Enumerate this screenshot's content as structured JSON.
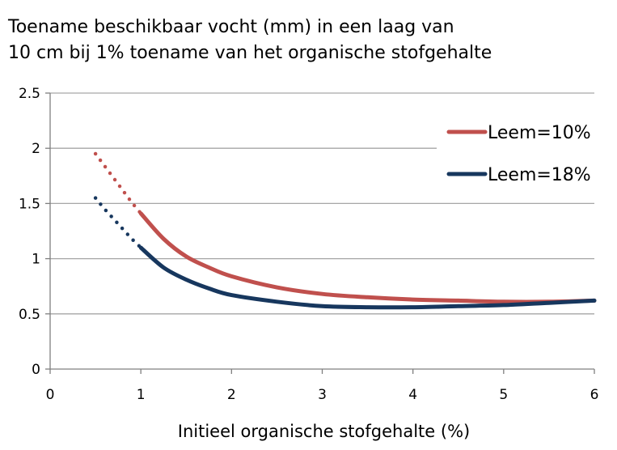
{
  "chart_data": {
    "type": "line",
    "title_lines": [
      "Toename beschikbaar vocht (mm) in een laag van",
      "10 cm bij 1% toename van het organische stofgehalte"
    ],
    "xlabel": "Initieel organische stofgehalte (%)",
    "ylabel": "",
    "xlim": [
      0,
      6
    ],
    "ylim": [
      0,
      2.5
    ],
    "x_ticks": [
      "0",
      "1",
      "2",
      "3",
      "4",
      "5",
      "6"
    ],
    "y_ticks": [
      "0",
      "0.5",
      "1",
      "1.5",
      "2",
      "2.5"
    ],
    "grid": "horizontal",
    "legend_position": "top-right",
    "series": [
      {
        "name": "Leem=10%",
        "color": "#c0504d",
        "dotted_segment": {
          "x": [
            0.5,
            0.6,
            0.7,
            0.8,
            0.9,
            1.0
          ],
          "y": [
            1.95,
            1.84,
            1.73,
            1.62,
            1.51,
            1.41
          ]
        },
        "solid_segment": {
          "x": [
            1.0,
            1.25,
            1.5,
            1.75,
            2.0,
            2.5,
            3.0,
            3.5,
            4.0,
            4.5,
            5.0,
            5.5,
            6.0
          ],
          "y": [
            1.41,
            1.18,
            1.02,
            0.92,
            0.84,
            0.74,
            0.68,
            0.65,
            0.63,
            0.62,
            0.61,
            0.61,
            0.62
          ]
        }
      },
      {
        "name": "Leem=18%",
        "color": "#17375e",
        "dotted_segment": {
          "x": [
            0.5,
            0.6,
            0.7,
            0.8,
            0.9,
            1.0
          ],
          "y": [
            1.55,
            1.45,
            1.36,
            1.27,
            1.18,
            1.1
          ]
        },
        "solid_segment": {
          "x": [
            1.0,
            1.25,
            1.5,
            1.75,
            2.0,
            2.5,
            3.0,
            3.5,
            4.0,
            4.5,
            5.0,
            5.5,
            6.0
          ],
          "y": [
            1.1,
            0.92,
            0.81,
            0.73,
            0.67,
            0.61,
            0.57,
            0.56,
            0.56,
            0.57,
            0.58,
            0.6,
            0.62
          ]
        }
      }
    ]
  }
}
